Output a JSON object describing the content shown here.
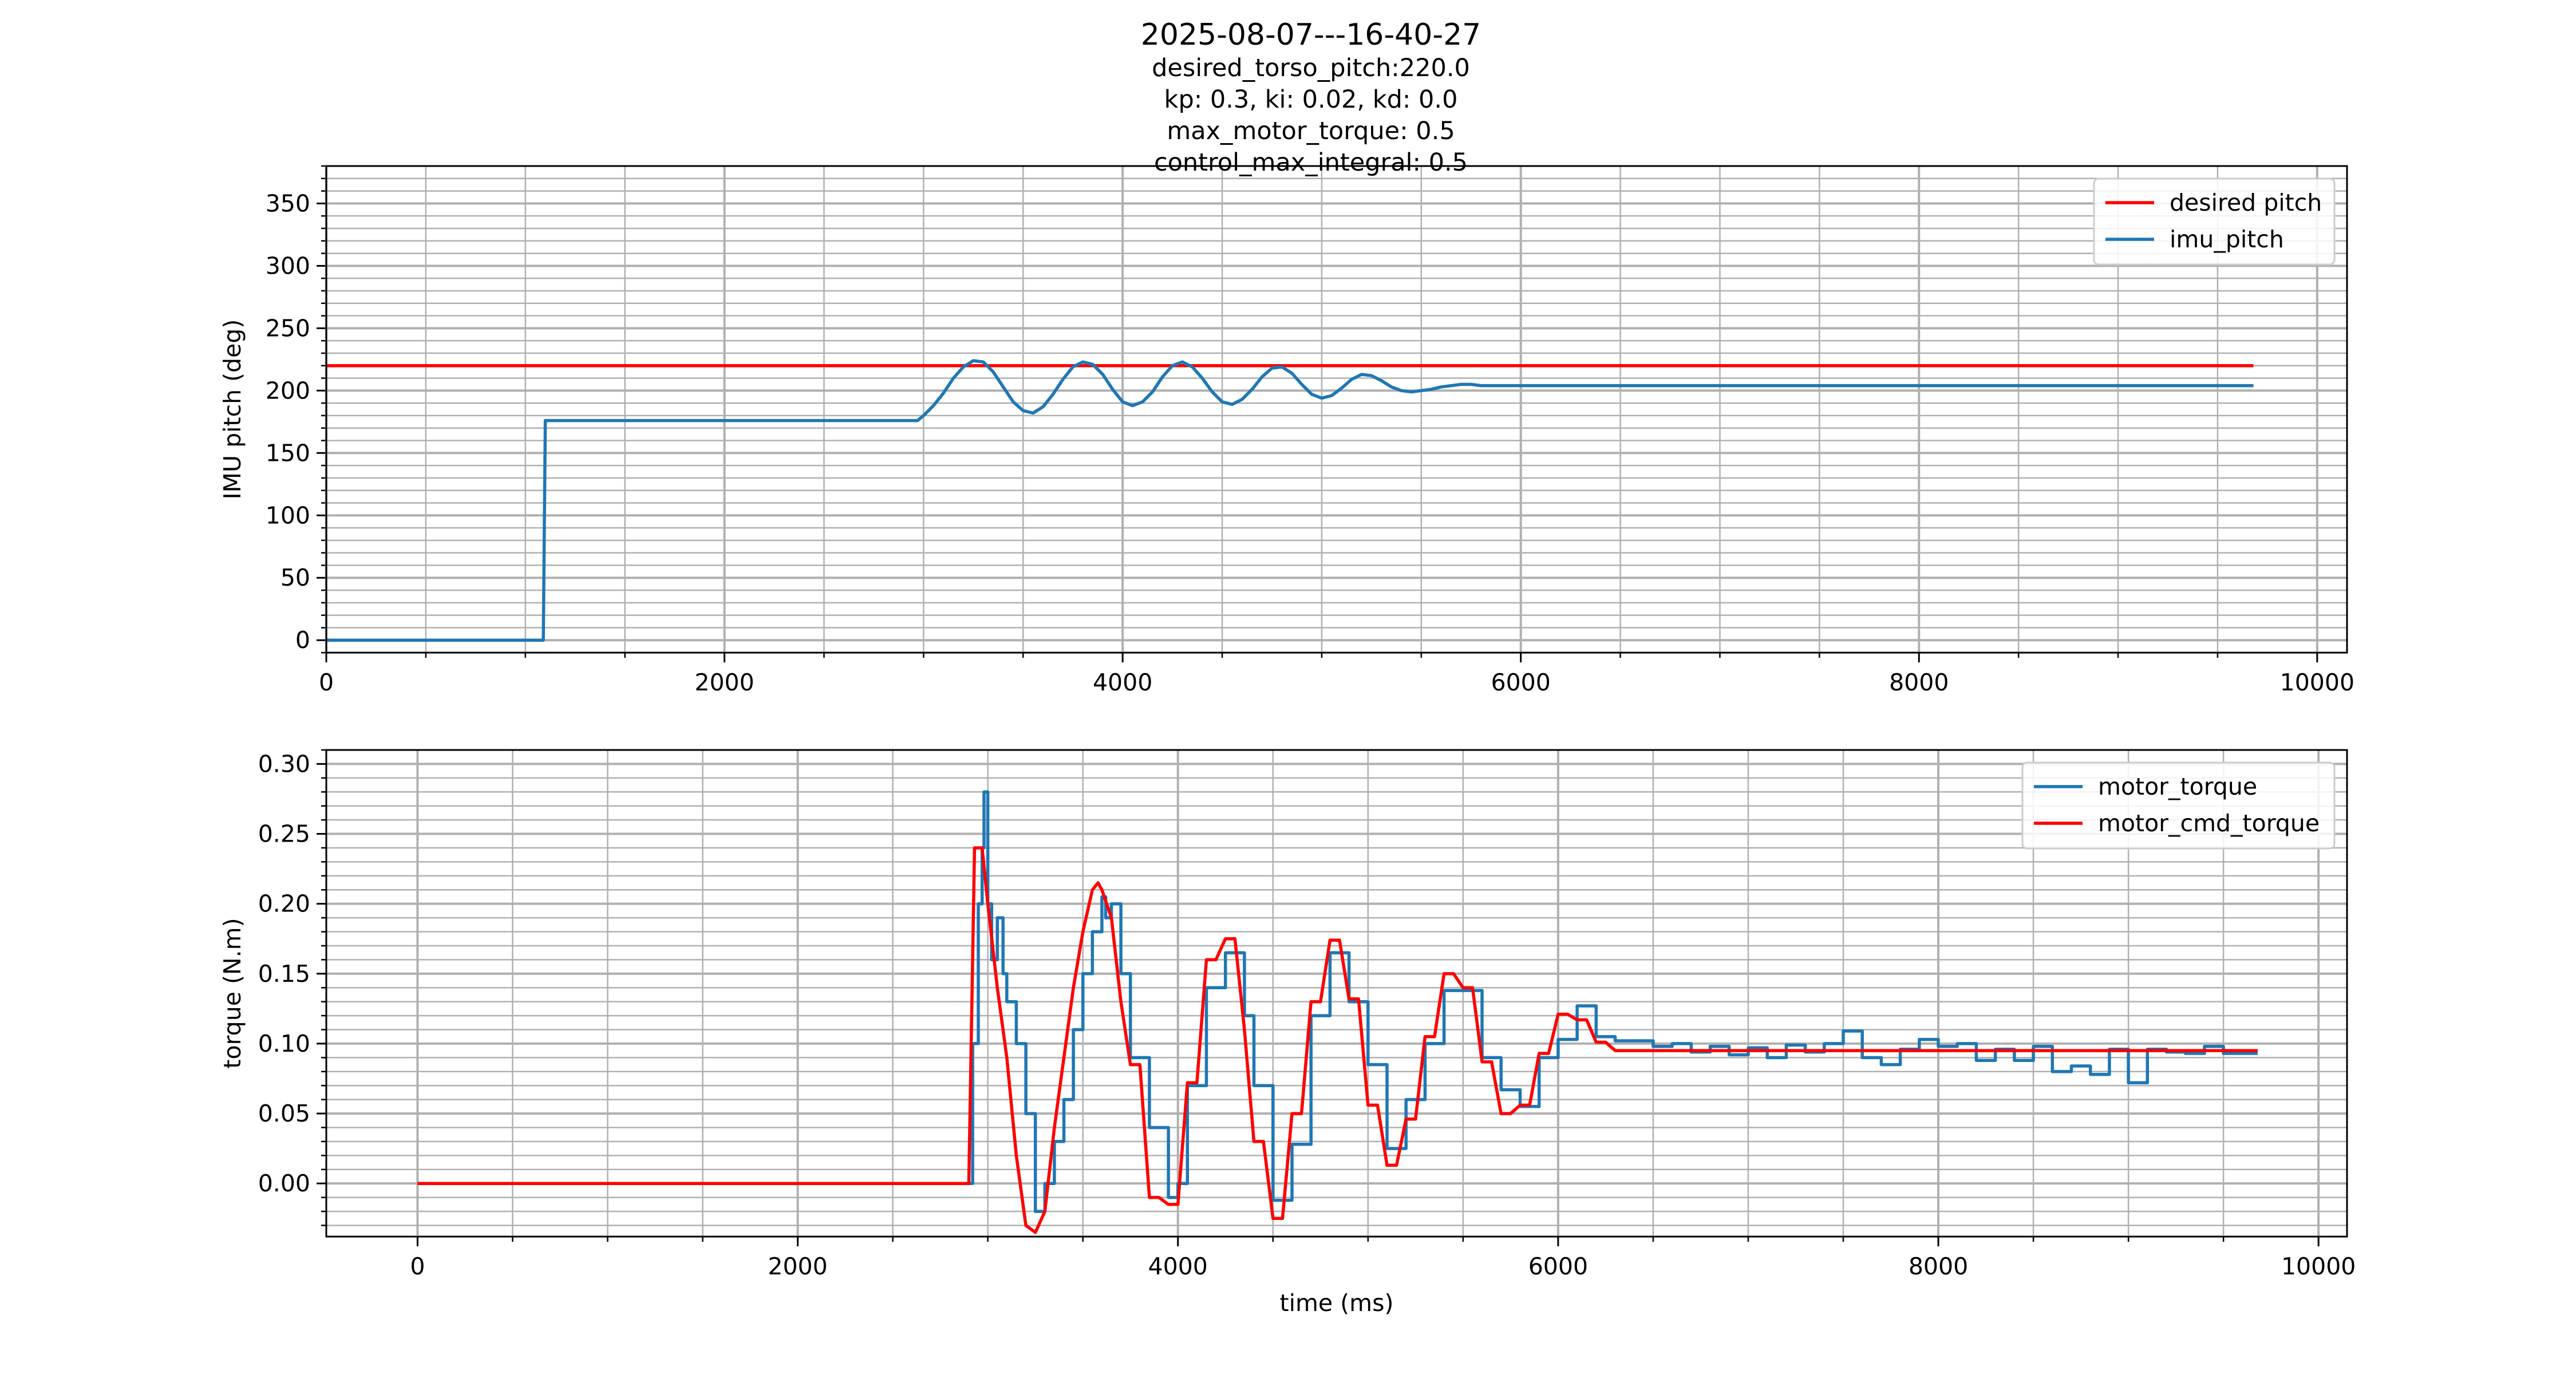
{
  "figure": {
    "title": "2025-08-07---16-40-27",
    "subtitle_lines": [
      "desired_torso_pitch:220.0",
      "kp: 0.3, ki: 0.02, kd: 0.0",
      "max_motor_torque: 0.5",
      "control_max_integral: 0.5"
    ]
  },
  "colors": {
    "blue": "#1f77b4",
    "red": "#ff0000",
    "grid": "#b0b0b0"
  },
  "chart_data": [
    {
      "type": "line",
      "xlabel": "",
      "ylabel": "IMU pitch (deg)",
      "xlim": [
        0,
        10150
      ],
      "ylim": [
        -10,
        380
      ],
      "xticks": [
        0,
        2000,
        4000,
        6000,
        8000,
        10000
      ],
      "yticks": [
        0,
        50,
        100,
        150,
        200,
        250,
        300,
        350
      ],
      "x_minor_step": 500,
      "y_minor_step": 10,
      "grid": true,
      "legend": "top-right",
      "series": [
        {
          "name": "desired pitch",
          "color": "#ff0000",
          "x": [
            0,
            9680
          ],
          "y": [
            220,
            220
          ]
        },
        {
          "name": "imu_pitch",
          "color": "#1f77b4",
          "x": [
            0,
            1090,
            1100,
            2970,
            3000,
            3050,
            3100,
            3150,
            3200,
            3250,
            3300,
            3350,
            3400,
            3450,
            3500,
            3550,
            3600,
            3650,
            3700,
            3750,
            3800,
            3850,
            3900,
            3950,
            4000,
            4050,
            4100,
            4150,
            4200,
            4250,
            4300,
            4350,
            4400,
            4450,
            4500,
            4550,
            4600,
            4650,
            4700,
            4750,
            4800,
            4850,
            4900,
            4950,
            5000,
            5050,
            5100,
            5150,
            5200,
            5250,
            5300,
            5350,
            5400,
            5450,
            5500,
            5550,
            5600,
            5650,
            5700,
            5750,
            5800,
            5850,
            5900,
            5950,
            6000,
            6050,
            6100,
            6150,
            6200,
            6250,
            6300,
            6350,
            6400,
            6450,
            6500,
            9680
          ],
          "y": [
            0,
            0,
            176,
            176,
            180,
            188,
            198,
            210,
            219,
            224,
            223,
            215,
            203,
            191,
            184,
            182,
            187,
            197,
            209,
            219,
            223,
            221,
            213,
            201,
            191,
            188,
            191,
            199,
            211,
            220,
            223,
            219,
            210,
            199,
            191,
            189,
            193,
            201,
            211,
            218,
            219,
            214,
            205,
            197,
            194,
            196,
            202,
            209,
            213,
            212,
            208,
            203,
            200,
            199,
            200,
            201,
            203,
            204,
            205,
            205,
            204,
            204,
            204,
            204,
            204,
            204,
            204,
            204,
            204,
            204,
            204,
            204,
            204,
            204,
            204,
            204
          ]
        }
      ]
    },
    {
      "type": "line",
      "xlabel": "time (ms)",
      "ylabel": "torque (N.m)",
      "xlim": [
        -480,
        10150
      ],
      "ylim": [
        -0.038,
        0.31
      ],
      "xticks": [
        0,
        2000,
        4000,
        6000,
        8000,
        10000
      ],
      "yticks": [
        0.0,
        0.05,
        0.1,
        0.15,
        0.2,
        0.25,
        0.3
      ],
      "ytick_labels": [
        "0.00",
        "0.05",
        "0.10",
        "0.15",
        "0.20",
        "0.25",
        "0.30"
      ],
      "x_minor_step": 500,
      "y_minor_step": 0.01,
      "grid": true,
      "legend": "top-right",
      "series": [
        {
          "name": "motor_torque",
          "color": "#1f77b4",
          "x": [
            0,
            2900,
            2920,
            2950,
            2970,
            2980,
            3000,
            3020,
            3050,
            3080,
            3100,
            3150,
            3200,
            3250,
            3300,
            3350,
            3400,
            3450,
            3500,
            3550,
            3600,
            3620,
            3650,
            3700,
            3750,
            3800,
            3850,
            3900,
            3950,
            4000,
            4050,
            4100,
            4150,
            4200,
            4250,
            4300,
            4350,
            4400,
            4450,
            4500,
            4550,
            4600,
            4650,
            4700,
            4750,
            4800,
            4850,
            4900,
            4950,
            5000,
            5050,
            5100,
            5150,
            5200,
            5250,
            5300,
            5350,
            5400,
            5450,
            5500,
            5550,
            5600,
            5650,
            5700,
            5750,
            5800,
            5850,
            5900,
            5950,
            6000,
            6050,
            6100,
            6150,
            6200,
            6250,
            6300,
            6400,
            6500,
            6600,
            6700,
            6800,
            6900,
            7000,
            7100,
            7200,
            7300,
            7400,
            7500,
            7600,
            7700,
            7800,
            7900,
            8000,
            8100,
            8200,
            8300,
            8400,
            8500,
            8600,
            8700,
            8800,
            8900,
            9000,
            9100,
            9200,
            9300,
            9400,
            9500,
            9600,
            9680
          ],
          "y": [
            0,
            0,
            0.1,
            0.2,
            0.24,
            0.28,
            0.2,
            0.16,
            0.19,
            0.15,
            0.13,
            0.1,
            0.05,
            -0.02,
            0.0,
            0.03,
            0.06,
            0.11,
            0.15,
            0.18,
            0.205,
            0.19,
            0.2,
            0.15,
            0.09,
            0.09,
            0.04,
            0.04,
            -0.01,
            0.0,
            0.07,
            0.07,
            0.14,
            0.14,
            0.165,
            0.165,
            0.12,
            0.07,
            0.07,
            -0.012,
            -0.012,
            0.028,
            0.028,
            0.12,
            0.12,
            0.165,
            0.165,
            0.13,
            0.13,
            0.085,
            0.085,
            0.025,
            0.025,
            0.06,
            0.06,
            0.1,
            0.1,
            0.138,
            0.138,
            0.138,
            0.138,
            0.09,
            0.09,
            0.067,
            0.067,
            0.055,
            0.055,
            0.09,
            0.09,
            0.103,
            0.103,
            0.127,
            0.127,
            0.105,
            0.105,
            0.102,
            0.102,
            0.098,
            0.1,
            0.094,
            0.098,
            0.092,
            0.097,
            0.09,
            0.099,
            0.094,
            0.1,
            0.109,
            0.09,
            0.085,
            0.096,
            0.103,
            0.098,
            0.1,
            0.088,
            0.096,
            0.088,
            0.098,
            0.08,
            0.084,
            0.078,
            0.096,
            0.072,
            0.096,
            0.094,
            0.093,
            0.098,
            0.093,
            0.093,
            0.093
          ],
          "step": true
        },
        {
          "name": "motor_cmd_torque",
          "color": "#ff0000",
          "x": [
            0,
            2900,
            2930,
            2970,
            3000,
            3050,
            3100,
            3150,
            3200,
            3250,
            3300,
            3350,
            3400,
            3450,
            3500,
            3550,
            3580,
            3600,
            3650,
            3700,
            3750,
            3800,
            3850,
            3900,
            3950,
            4000,
            4050,
            4100,
            4150,
            4200,
            4250,
            4300,
            4350,
            4400,
            4450,
            4500,
            4550,
            4600,
            4650,
            4700,
            4750,
            4800,
            4850,
            4900,
            4950,
            5000,
            5050,
            5100,
            5150,
            5200,
            5250,
            5300,
            5350,
            5400,
            5450,
            5500,
            5550,
            5600,
            5650,
            5700,
            5750,
            5800,
            5850,
            5900,
            5950,
            6000,
            6050,
            6100,
            6150,
            6200,
            6250,
            6300,
            6400,
            6500,
            9680
          ],
          "y": [
            0,
            0,
            0.24,
            0.24,
            0.2,
            0.14,
            0.09,
            0.02,
            -0.03,
            -0.035,
            -0.02,
            0.04,
            0.09,
            0.14,
            0.18,
            0.21,
            0.215,
            0.21,
            0.19,
            0.13,
            0.085,
            0.085,
            -0.01,
            -0.01,
            -0.015,
            -0.015,
            0.072,
            0.072,
            0.16,
            0.16,
            0.175,
            0.175,
            0.11,
            0.03,
            0.03,
            -0.025,
            -0.025,
            0.05,
            0.05,
            0.13,
            0.13,
            0.174,
            0.174,
            0.132,
            0.132,
            0.056,
            0.056,
            0.013,
            0.013,
            0.046,
            0.046,
            0.105,
            0.105,
            0.15,
            0.15,
            0.14,
            0.14,
            0.087,
            0.087,
            0.05,
            0.05,
            0.056,
            0.056,
            0.093,
            0.093,
            0.121,
            0.121,
            0.117,
            0.117,
            0.101,
            0.101,
            0.095,
            0.095,
            0.095,
            0.095
          ]
        }
      ]
    }
  ]
}
